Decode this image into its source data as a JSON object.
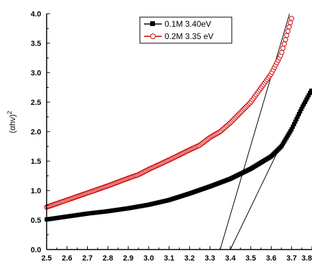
{
  "chart_data": {
    "type": "scatter",
    "ylabel": "(αhν)",
    "ylabel_superscript": "2",
    "xlabel": "",
    "xlim": [
      2.5,
      3.8
    ],
    "ylim": [
      0.0,
      4.0
    ],
    "x_ticks": [
      "2.5",
      "2.6",
      "2.7",
      "2.8",
      "2.9",
      "3.0",
      "3.1",
      "3.2",
      "3.3",
      "3.4",
      "3.5",
      "3.6",
      "3.7",
      "3.8"
    ],
    "y_ticks": [
      "0.0",
      "0.5",
      "1.0",
      "1.5",
      "2.0",
      "2.5",
      "3.0",
      "3.5",
      "4.0"
    ],
    "grid": false,
    "legend_position": "top-right",
    "series": [
      {
        "name": "0.1M 3.40eV",
        "color": "#000000",
        "marker": "filled-square",
        "points": [
          [
            2.5,
            0.51
          ],
          [
            2.6,
            0.56
          ],
          [
            2.7,
            0.61
          ],
          [
            2.8,
            0.65
          ],
          [
            2.9,
            0.7
          ],
          [
            3.0,
            0.76
          ],
          [
            3.1,
            0.84
          ],
          [
            3.2,
            0.95
          ],
          [
            3.3,
            1.07
          ],
          [
            3.4,
            1.2
          ],
          [
            3.5,
            1.37
          ],
          [
            3.6,
            1.58
          ],
          [
            3.65,
            1.75
          ],
          [
            3.7,
            2.04
          ],
          [
            3.75,
            2.4
          ],
          [
            3.8,
            2.72
          ]
        ]
      },
      {
        "name": "0.2M 3.35 eV",
        "color": "#cc0000",
        "marker": "open-circle",
        "points": [
          [
            2.5,
            0.72
          ],
          [
            2.6,
            0.84
          ],
          [
            2.7,
            0.96
          ],
          [
            2.8,
            1.08
          ],
          [
            2.9,
            1.21
          ],
          [
            2.95,
            1.27
          ],
          [
            3.0,
            1.36
          ],
          [
            3.1,
            1.52
          ],
          [
            3.2,
            1.69
          ],
          [
            3.25,
            1.77
          ],
          [
            3.3,
            1.9
          ],
          [
            3.35,
            2.0
          ],
          [
            3.4,
            2.15
          ],
          [
            3.5,
            2.5
          ],
          [
            3.6,
            2.98
          ],
          [
            3.65,
            3.32
          ],
          [
            3.7,
            3.92
          ]
        ]
      }
    ],
    "tangent_lines": [
      {
        "from": [
          3.35,
          0.0
        ],
        "to": [
          3.69,
          4.0
        ]
      },
      {
        "from": [
          3.4,
          0.0
        ],
        "to": [
          3.63,
          1.65
        ]
      }
    ]
  }
}
